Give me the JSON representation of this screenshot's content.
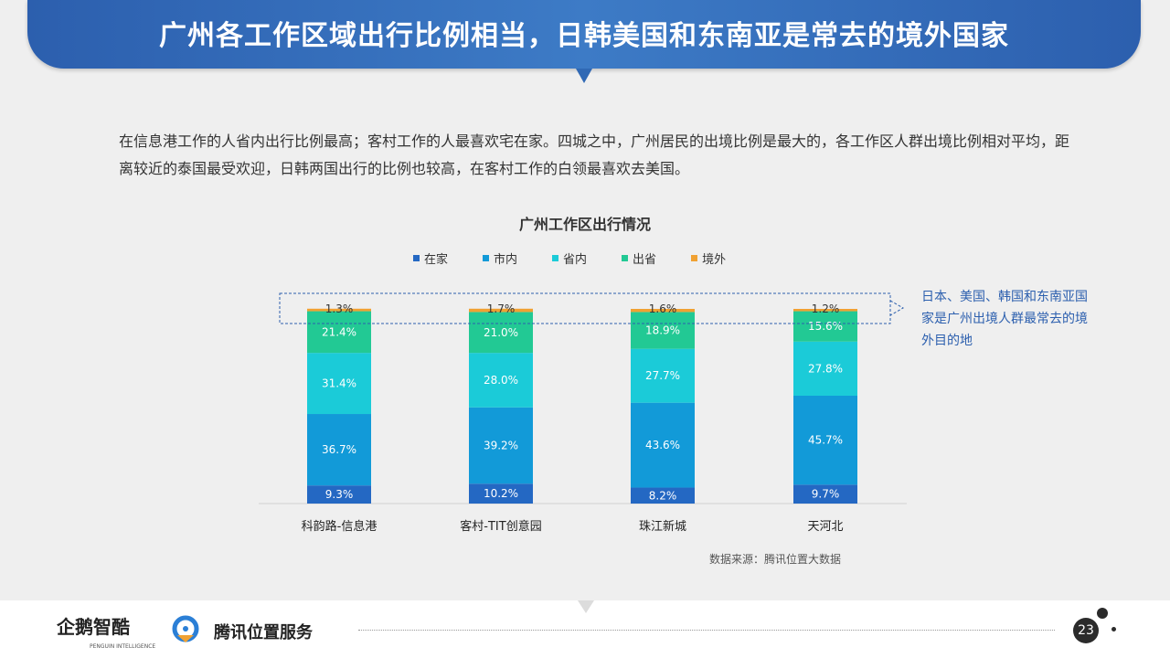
{
  "header": {
    "title": "广州各工作区域出行比例相当，日韩美国和东南亚是常去的境外国家"
  },
  "intro": "在信息港工作的人省内出行比例最高；客村工作的人最喜欢宅在家。四城之中，广州居民的出境比例是最大的，各工作区人群出境比例相对平均，距离较近的泰国最受欢迎，日韩两国出行的比例也较高，在客村工作的白领最喜欢去美国。",
  "callout": "日本、美国、韩国和东南亚国家是广州出境人群最常去的境外目的地",
  "source": "数据来源：腾讯位置大数据",
  "footer": {
    "logo1": "企鹅智酷",
    "logo1_sub": "PENGUIN INTELLIGENCE",
    "logo2": "腾讯位置服务",
    "page": "23"
  },
  "chart_data": {
    "type": "bar",
    "stacked": true,
    "title": "广州工作区出行情况",
    "categories": [
      "科韵路-信息港",
      "客村-TIT创意园",
      "珠江新城",
      "天河北"
    ],
    "series": [
      {
        "name": "在家",
        "color": "#2468c3",
        "values": [
          9.3,
          10.2,
          8.2,
          9.7
        ],
        "labels": [
          "9.3%",
          "10.2%",
          "8.2%",
          "9.7%"
        ]
      },
      {
        "name": "市内",
        "color": "#129ad8",
        "values": [
          36.7,
          39.2,
          43.6,
          45.7
        ],
        "labels": [
          "36.7%",
          "39.2%",
          "43.6%",
          "45.7%"
        ]
      },
      {
        "name": "省内",
        "color": "#1bcbd8",
        "values": [
          31.4,
          28.0,
          27.7,
          27.8
        ],
        "labels": [
          "31.4%",
          "28.0%",
          "27.7%",
          "27.8%"
        ]
      },
      {
        "name": "出省",
        "color": "#22c994",
        "values": [
          21.4,
          21.0,
          18.9,
          15.6
        ],
        "labels": [
          "21.4%",
          "21.0%",
          "18.9%",
          "15.6%"
        ]
      },
      {
        "name": "境外",
        "color": "#f0a132",
        "values": [
          1.3,
          1.7,
          1.6,
          1.2
        ],
        "labels": [
          "1.3%",
          "1.7%",
          "1.6%",
          "1.2%"
        ]
      }
    ],
    "ylim": [
      0,
      100
    ],
    "legend": "top",
    "grid": false
  }
}
